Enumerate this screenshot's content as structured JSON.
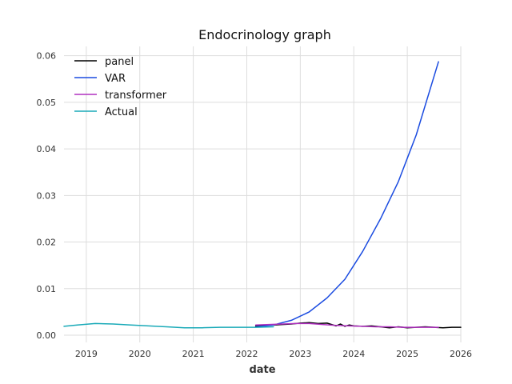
{
  "chart_data": {
    "type": "line",
    "title": "Endocrinology graph",
    "xlabel": "date",
    "ylabel": "",
    "x_range": [
      "2018-08-01",
      "2026-01-01"
    ],
    "ylim": [
      0,
      0.062
    ],
    "x_ticks": [
      "2019",
      "2020",
      "2021",
      "2022",
      "2023",
      "2024",
      "2025",
      "2026"
    ],
    "y_ticks": [
      "0.00",
      "0.01",
      "0.02",
      "0.03",
      "0.04",
      "0.05",
      "0.06"
    ],
    "grid": true,
    "legend_position": "top-left",
    "series": [
      {
        "name": "panel",
        "color": "#000000",
        "x": [
          "2022-03-01",
          "2022-05-01",
          "2022-07-01",
          "2022-09-01",
          "2022-11-01",
          "2023-01-01",
          "2023-03-01",
          "2023-05-01",
          "2023-07-01",
          "2023-09-01",
          "2023-10-01",
          "2023-11-01",
          "2023-12-01",
          "2024-01-01",
          "2024-03-01",
          "2024-05-01",
          "2024-07-01",
          "2024-09-01",
          "2024-11-01",
          "2025-01-01",
          "2025-03-01",
          "2025-05-01",
          "2025-07-01",
          "2025-09-01",
          "2025-11-01",
          "2026-01-01"
        ],
        "y": [
          0.002,
          0.0021,
          0.0022,
          0.0023,
          0.0024,
          0.0026,
          0.0027,
          0.0025,
          0.0026,
          0.002,
          0.0024,
          0.0019,
          0.0022,
          0.002,
          0.0019,
          0.002,
          0.0018,
          0.0016,
          0.0018,
          0.0016,
          0.0017,
          0.0018,
          0.0017,
          0.0016,
          0.0017,
          0.0017
        ]
      },
      {
        "name": "VAR",
        "color": "#1a4be0",
        "x": [
          "2022-03-01",
          "2022-07-01",
          "2022-11-01",
          "2023-03-01",
          "2023-07-01",
          "2023-11-01",
          "2024-03-01",
          "2024-07-01",
          "2024-11-01",
          "2025-03-01",
          "2025-08-01"
        ],
        "y": [
          0.0018,
          0.0022,
          0.0032,
          0.005,
          0.008,
          0.012,
          0.018,
          0.025,
          0.033,
          0.043,
          0.0587
        ]
      },
      {
        "name": "transformer",
        "color": "#b030c0",
        "x": [
          "2022-03-01",
          "2022-06-01",
          "2022-09-01",
          "2022-12-01",
          "2023-03-01",
          "2023-06-01",
          "2023-09-01",
          "2023-12-01",
          "2024-03-01",
          "2024-06-01",
          "2024-09-01",
          "2024-12-01",
          "2025-03-01",
          "2025-06-01",
          "2025-08-01"
        ],
        "y": [
          0.0022,
          0.0023,
          0.0024,
          0.0025,
          0.0025,
          0.0023,
          0.0021,
          0.002,
          0.0019,
          0.0018,
          0.0018,
          0.0017,
          0.0017,
          0.0017,
          0.0017
        ]
      },
      {
        "name": "Actual",
        "color": "#1aaab8",
        "x": [
          "2018-08-01",
          "2018-11-01",
          "2019-03-01",
          "2019-07-01",
          "2019-11-01",
          "2020-03-01",
          "2020-07-01",
          "2020-11-01",
          "2021-03-01",
          "2021-07-01",
          "2021-11-01",
          "2022-03-01",
          "2022-07-01"
        ],
        "y": [
          0.0019,
          0.0022,
          0.0025,
          0.0024,
          0.0022,
          0.002,
          0.0018,
          0.0016,
          0.0016,
          0.0017,
          0.0017,
          0.0017,
          0.0018
        ]
      }
    ]
  }
}
